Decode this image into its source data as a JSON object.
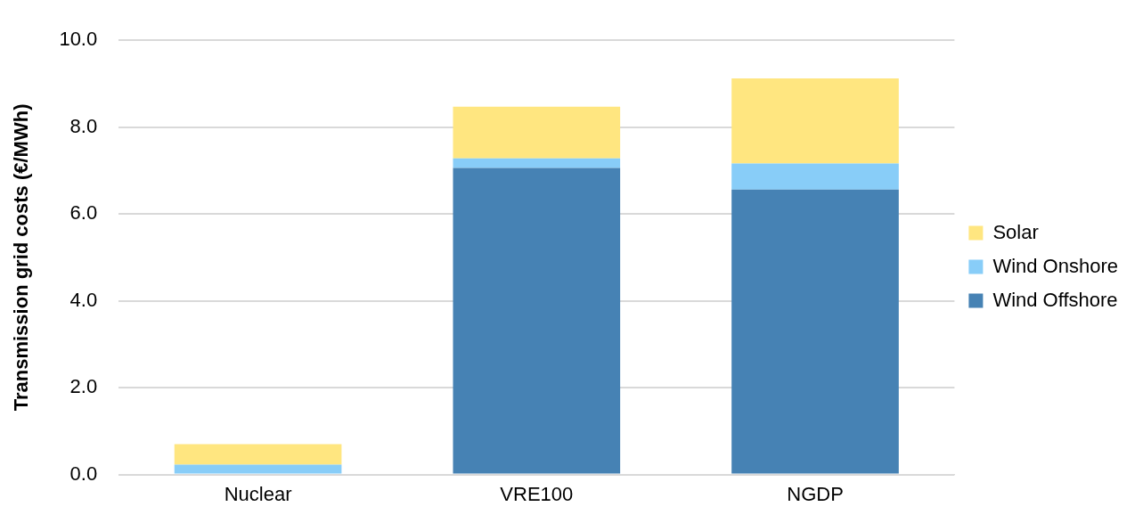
{
  "chart_data": {
    "type": "bar",
    "ylabel": "Transmission grid costs (€/MWh)",
    "categories": [
      "Nuclear",
      "VRE100",
      "NGDP"
    ],
    "stacked": true,
    "series": [
      {
        "name": "Wind Offshore",
        "color": "#4682b4",
        "values": [
          0.0,
          7.06,
          6.56
        ]
      },
      {
        "name": "Wind Onshore",
        "color": "#88cdf8",
        "values": [
          0.23,
          0.22,
          0.6
        ]
      },
      {
        "name": "Solar",
        "color": "#ffe680",
        "values": [
          0.47,
          1.19,
          1.96
        ]
      }
    ],
    "ylim": [
      0,
      10
    ],
    "yticks": [
      {
        "value": 0,
        "label": "0.0"
      },
      {
        "value": 2,
        "label": "2.0"
      },
      {
        "value": 4,
        "label": "4.0"
      },
      {
        "value": 6,
        "label": "6.0"
      },
      {
        "value": 8,
        "label": "8.0"
      },
      {
        "value": 10,
        "label": "10.0"
      }
    ],
    "grid": "y",
    "legend": "right"
  }
}
